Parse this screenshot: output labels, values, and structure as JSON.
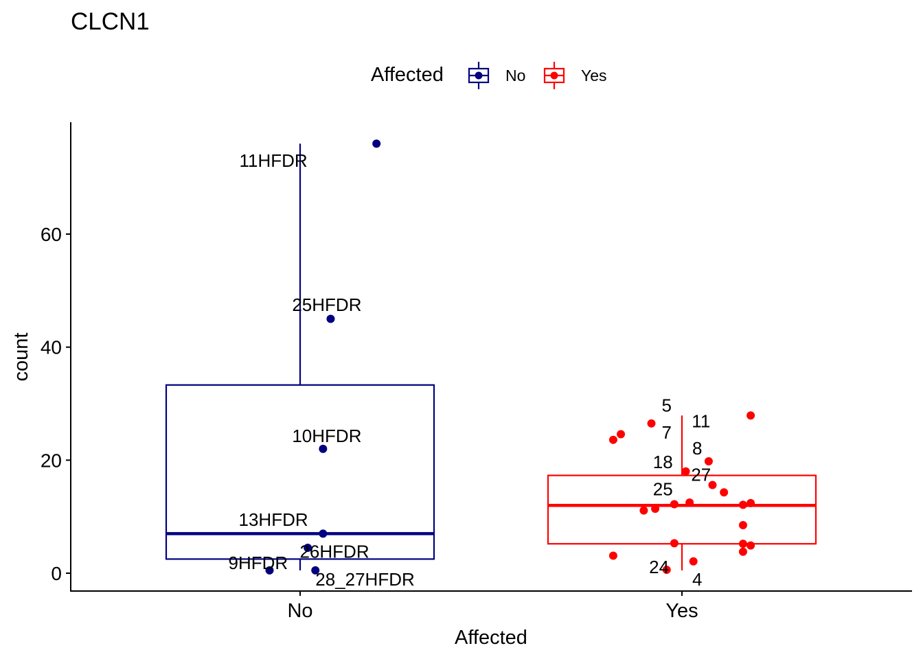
{
  "chart_data": {
    "type": "boxplot",
    "title": "CLCN1",
    "xlabel": "Affected",
    "ylabel": "count",
    "categories": [
      "No",
      "Yes"
    ],
    "ylim": [
      -3.2,
      80
    ],
    "yticks": [
      0,
      20,
      40,
      60
    ],
    "grid": false,
    "legend": {
      "title": "Affected",
      "position": "top",
      "entries": [
        {
          "label": "No",
          "color": "#000080"
        },
        {
          "label": "Yes",
          "color": "#FF0000"
        }
      ]
    },
    "series": [
      {
        "name": "No",
        "color": "#000080",
        "box": {
          "whisker_low": 0.5,
          "q1": 2.5,
          "median": 7,
          "q3": 33.3,
          "whisker_high": 76
        },
        "points": [
          {
            "jitter": 0.2,
            "y": 76
          },
          {
            "jitter": 0.08,
            "y": 45
          },
          {
            "jitter": 0.06,
            "y": 22
          },
          {
            "jitter": 0.06,
            "y": 7
          },
          {
            "jitter": 0.02,
            "y": 4.5
          },
          {
            "jitter": -0.08,
            "y": 0.5
          },
          {
            "jitter": 0.04,
            "y": 0.5
          }
        ],
        "labels": [
          {
            "text": "11HFDR",
            "y": 73,
            "dx": -0.07
          },
          {
            "text": "25HFDR",
            "y": 47.5,
            "dx": 0.07
          },
          {
            "text": "10HFDR",
            "y": 24.3,
            "dx": 0.07
          },
          {
            "text": "13HFDR",
            "y": 9.5,
            "dx": -0.07
          },
          {
            "text": "26HFDR",
            "y": 3.8,
            "dx": 0.09
          },
          {
            "text": "9HFDR",
            "y": 1.8,
            "dx": -0.11
          },
          {
            "text": "28_27HFDR",
            "y": -1.1,
            "dx": 0.17
          }
        ]
      },
      {
        "name": "Yes",
        "color": "#FF0000",
        "box": {
          "whisker_low": 0.5,
          "q1": 5.2,
          "median": 12,
          "q3": 17.3,
          "whisker_high": 27.9
        },
        "points": [
          {
            "jitter": 0.18,
            "y": 27.9
          },
          {
            "jitter": -0.08,
            "y": 26.5
          },
          {
            "jitter": -0.16,
            "y": 24.6
          },
          {
            "jitter": -0.18,
            "y": 23.6
          },
          {
            "jitter": 0.07,
            "y": 19.8
          },
          {
            "jitter": 0.01,
            "y": 18
          },
          {
            "jitter": 0.08,
            "y": 15.6
          },
          {
            "jitter": 0.11,
            "y": 14.3
          },
          {
            "jitter": 0.02,
            "y": 12.5
          },
          {
            "jitter": -0.02,
            "y": 12.2
          },
          {
            "jitter": 0.18,
            "y": 12.4
          },
          {
            "jitter": 0.16,
            "y": 12.1
          },
          {
            "jitter": -0.07,
            "y": 11.4
          },
          {
            "jitter": -0.1,
            "y": 11.1
          },
          {
            "jitter": 0.16,
            "y": 8.5
          },
          {
            "jitter": -0.02,
            "y": 5.3
          },
          {
            "jitter": 0.16,
            "y": 5.2
          },
          {
            "jitter": 0.18,
            "y": 4.9
          },
          {
            "jitter": 0.16,
            "y": 3.8
          },
          {
            "jitter": -0.18,
            "y": 3.1
          },
          {
            "jitter": 0.03,
            "y": 2.1
          },
          {
            "jitter": -0.04,
            "y": 0.6
          }
        ],
        "labels": [
          {
            "text": "5",
            "y": 29.7,
            "dx": -0.04
          },
          {
            "text": "11",
            "y": 26.9,
            "dx": 0.05
          },
          {
            "text": "7",
            "y": 24.9,
            "dx": -0.04
          },
          {
            "text": "8",
            "y": 22.1,
            "dx": 0.04
          },
          {
            "text": "18",
            "y": 19.7,
            "dx": -0.05
          },
          {
            "text": "27",
            "y": 17.4,
            "dx": 0.05
          },
          {
            "text": "25",
            "y": 14.9,
            "dx": -0.05
          },
          {
            "text": "24",
            "y": 1.1,
            "dx": -0.06
          },
          {
            "text": "4",
            "y": -1.1,
            "dx": 0.04
          }
        ]
      }
    ]
  }
}
